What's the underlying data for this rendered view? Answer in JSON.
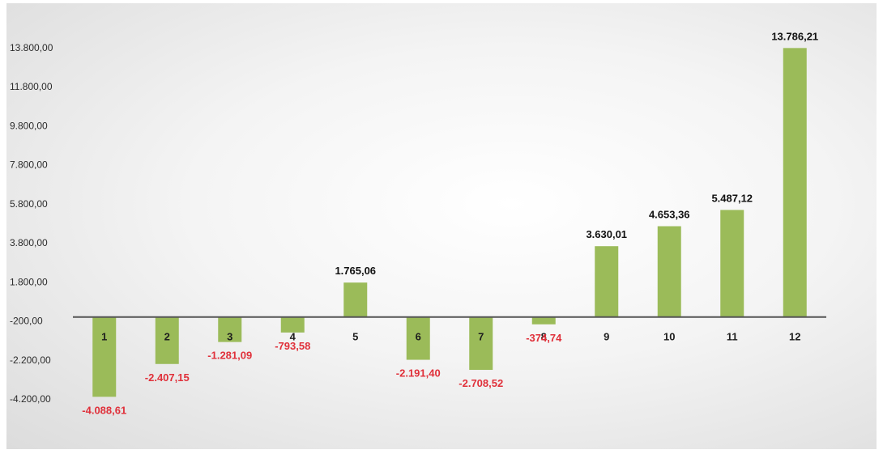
{
  "chart_data": {
    "type": "bar",
    "categories": [
      "1",
      "2",
      "3",
      "4",
      "5",
      "6",
      "7",
      "8",
      "9",
      "10",
      "11",
      "12"
    ],
    "values": [
      -4088.61,
      -2407.15,
      -1281.09,
      -793.58,
      1765.06,
      -2191.4,
      -2708.52,
      -374.74,
      3630.01,
      4653.36,
      5487.12,
      13786.21
    ],
    "data_labels": [
      "-4.088,61",
      "-2.407,15",
      "-1.281,09",
      "-793,58",
      "1.765,06",
      "-2.191,40",
      "-2.708,52",
      "-374,74",
      "3.630,01",
      "4.653,36",
      "5.487,12",
      "13.786,21"
    ],
    "yticks": [
      13800,
      11800,
      9800,
      7800,
      5800,
      3800,
      1800,
      -200,
      -2200,
      -4200
    ],
    "ytick_labels": [
      "13.800,00",
      "11.800,00",
      "9.800,00",
      "7.800,00",
      "5.800,00",
      "3.800,00",
      "1.800,00",
      "-200,00",
      "-2.200,00",
      "-4.200,00"
    ],
    "ylim": [
      -4700,
      14500
    ],
    "grid": false,
    "colors": {
      "bar": "#9bbb59",
      "positive_label": "#111111",
      "negative_label": "#e0303a",
      "axis": "#555555"
    }
  }
}
